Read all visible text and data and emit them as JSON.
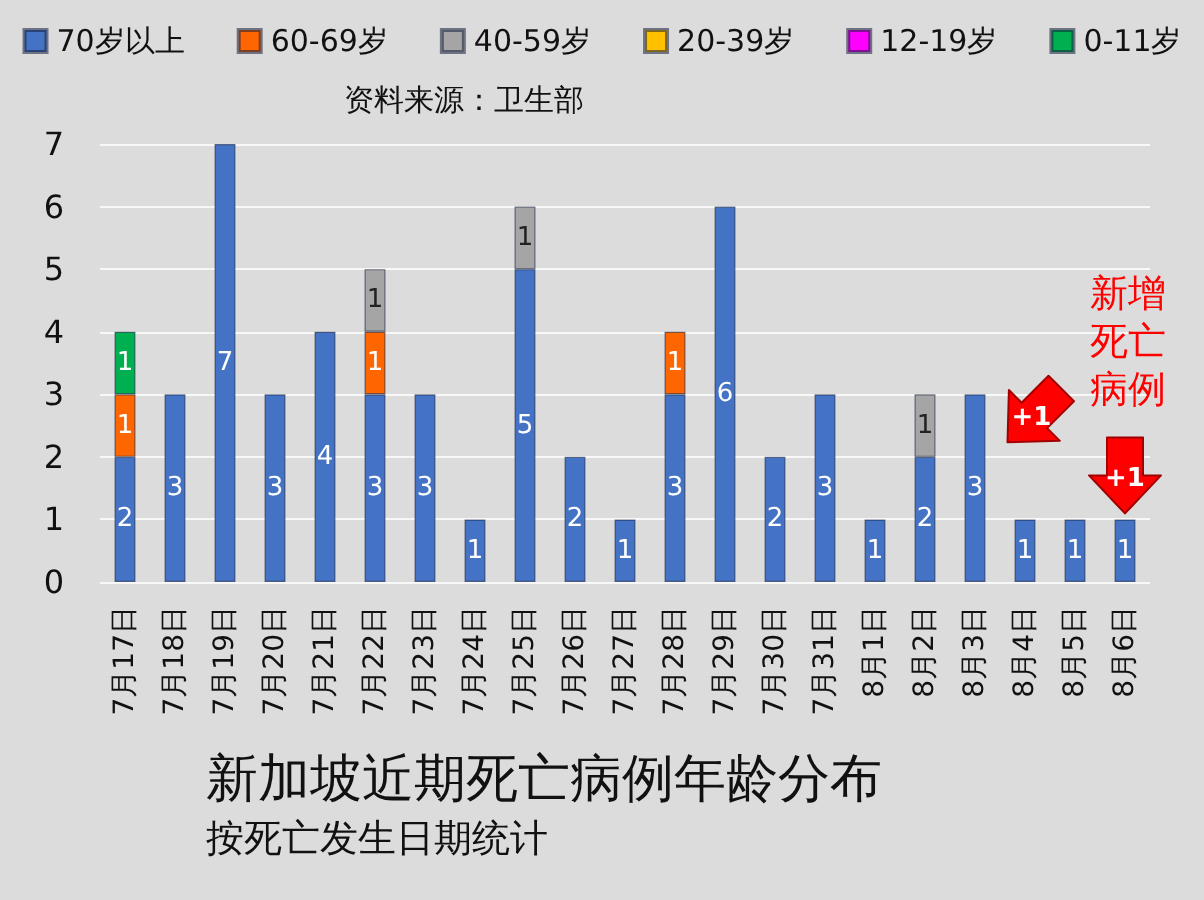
{
  "chart_data": {
    "type": "bar",
    "title": "新加坡近期死亡病例年龄分布",
    "subtitle": "按死亡发生日期统计",
    "categories": [
      "7月17日",
      "7月18日",
      "7月19日",
      "7月20日",
      "7月21日",
      "7月22日",
      "7月23日",
      "7月24日",
      "7月25日",
      "7月26日",
      "7月27日",
      "7月28日",
      "7月29日",
      "7月30日",
      "7月31日",
      "8月1日",
      "8月2日",
      "8月3日",
      "8月4日",
      "8月5日",
      "8月6日"
    ],
    "series": [
      {
        "name": "70岁以上",
        "color": "#4472c4",
        "values": [
          2,
          3,
          7,
          3,
          4,
          3,
          3,
          1,
          5,
          2,
          1,
          3,
          6,
          2,
          3,
          1,
          2,
          3,
          1,
          1,
          1
        ]
      },
      {
        "name": "60-69岁",
        "color": "#ff6600",
        "values": [
          1,
          null,
          null,
          null,
          null,
          1,
          null,
          null,
          null,
          null,
          null,
          1,
          null,
          null,
          null,
          null,
          null,
          null,
          null,
          null,
          null
        ]
      },
      {
        "name": "40-59岁",
        "color": "#a5a5a5",
        "values": [
          null,
          null,
          null,
          null,
          null,
          1,
          null,
          null,
          1,
          null,
          null,
          null,
          null,
          null,
          null,
          null,
          1,
          null,
          null,
          null,
          null
        ]
      },
      {
        "name": "20-39岁",
        "color": "#ffc000",
        "values": [
          null,
          null,
          null,
          null,
          null,
          null,
          null,
          null,
          null,
          null,
          null,
          null,
          null,
          null,
          null,
          null,
          null,
          null,
          null,
          null,
          null
        ]
      },
      {
        "name": "12-19岁",
        "color": "#ff00ff",
        "values": [
          null,
          null,
          null,
          null,
          null,
          null,
          null,
          null,
          null,
          null,
          null,
          null,
          null,
          null,
          null,
          null,
          null,
          null,
          null,
          null,
          null
        ]
      },
      {
        "name": "0-11岁",
        "color": "#00b050",
        "values": [
          1,
          null,
          null,
          null,
          null,
          null,
          null,
          null,
          null,
          null,
          null,
          null,
          null,
          null,
          null,
          null,
          null,
          null,
          null,
          null,
          null
        ]
      }
    ],
    "stacked": true,
    "ylim": [
      0,
      7
    ],
    "yticks": [
      0,
      1,
      2,
      3,
      4,
      5,
      6,
      7
    ],
    "grid": "y",
    "legend": "top",
    "data_labels": true,
    "annotations": [
      "资料来源：卫生部",
      "新增死亡病例",
      {
        "text": "+1",
        "x": "8月3日",
        "y": 3
      },
      {
        "text": "+1",
        "x": "8月6日",
        "y": 1
      }
    ]
  }
}
